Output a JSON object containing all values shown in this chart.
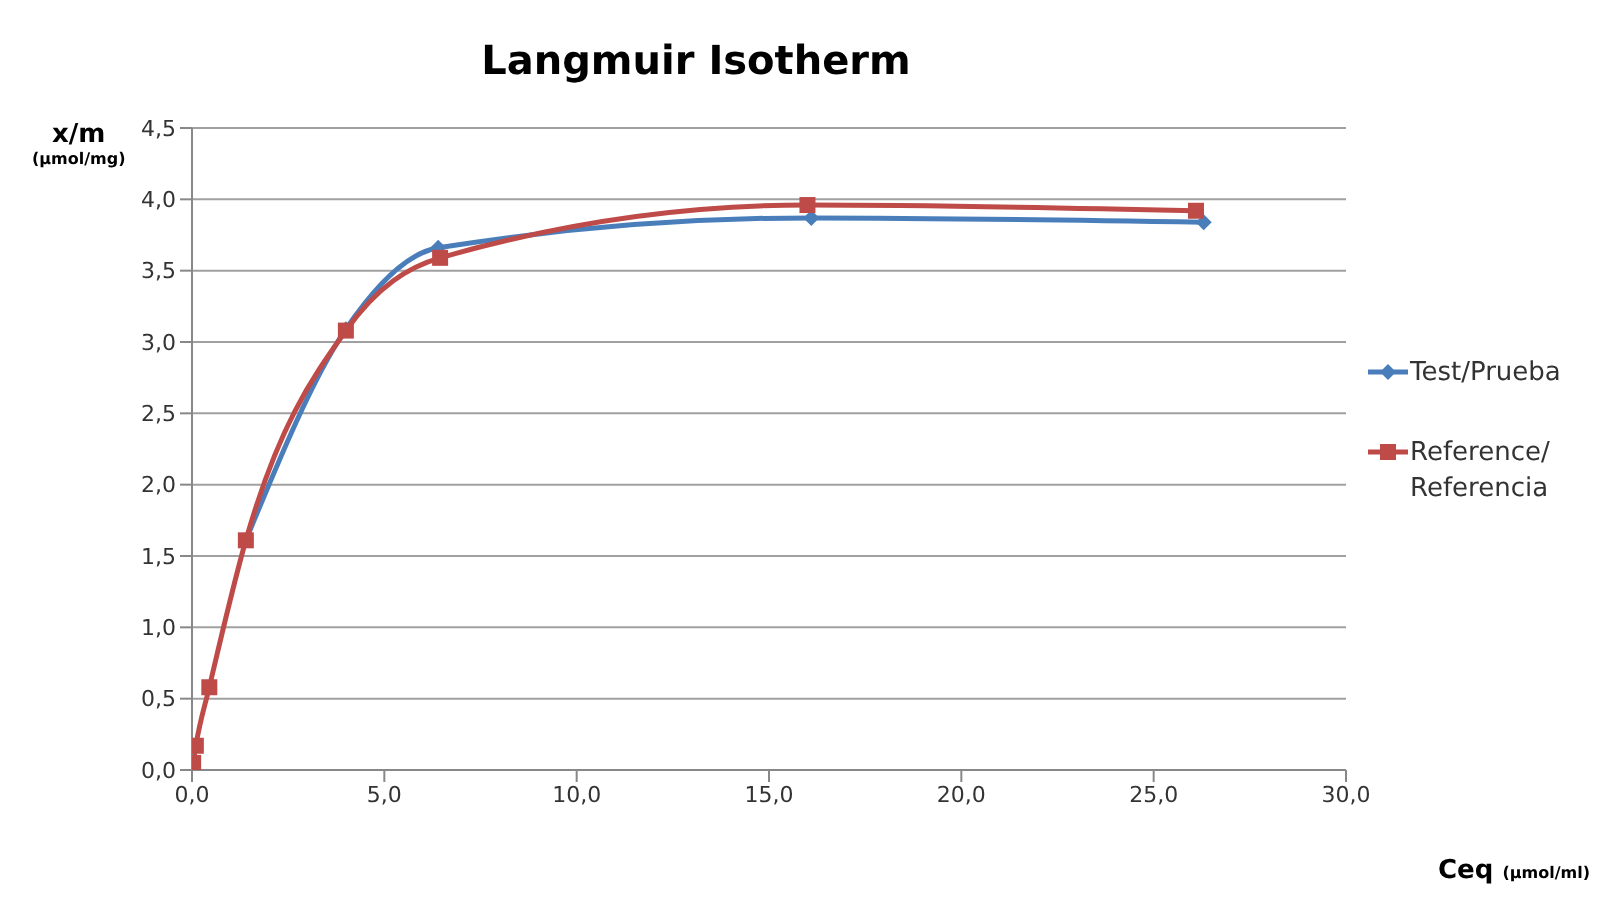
{
  "chart_data": {
    "type": "line",
    "title": "Langmuir Isotherm",
    "xlabel": "Ceq (µmol/ml)",
    "ylabel": "x/m (µmol/mg)",
    "series": [
      {
        "name": "Test/Prueba",
        "color": "#4a7ebb",
        "marker": "diamond",
        "x": [
          1.4,
          4.0,
          6.4,
          16.1,
          26.3
        ],
        "values": [
          1.61,
          3.09,
          3.66,
          3.87,
          3.84
        ]
      },
      {
        "name": "Reference/Referencia",
        "color": "#be4b48",
        "marker": "square",
        "x": [
          0.03,
          0.1,
          0.45,
          1.4,
          4.0,
          6.45,
          16.0,
          26.1
        ],
        "values": [
          0.05,
          0.17,
          0.58,
          1.61,
          3.08,
          3.59,
          3.96,
          3.92
        ]
      }
    ],
    "xlim": [
      0,
      30
    ],
    "xticks": [
      {
        "value": 0,
        "label": "0,0"
      },
      {
        "value": 5,
        "label": "5,0"
      },
      {
        "value": 10,
        "label": "10,0"
      },
      {
        "value": 15,
        "label": "15,0"
      },
      {
        "value": 20,
        "label": "20,0"
      },
      {
        "value": 25,
        "label": "25,0"
      },
      {
        "value": 30,
        "label": "30,0"
      }
    ],
    "ylim": [
      0,
      4.5
    ],
    "yticks": [
      {
        "value": 0,
        "label": "0,0"
      },
      {
        "value": 0.5,
        "label": "0,5"
      },
      {
        "value": 1,
        "label": "1,0"
      },
      {
        "value": 1.5,
        "label": "1,5"
      },
      {
        "value": 2,
        "label": "2,0"
      },
      {
        "value": 2.5,
        "label": "2,5"
      },
      {
        "value": 3,
        "label": "3,0"
      },
      {
        "value": 3.5,
        "label": "3,5"
      },
      {
        "value": 4,
        "label": "4,0"
      },
      {
        "value": 4.5,
        "label": "4,5"
      }
    ],
    "grid": "y",
    "legend": "right",
    "line_style": "solid"
  }
}
